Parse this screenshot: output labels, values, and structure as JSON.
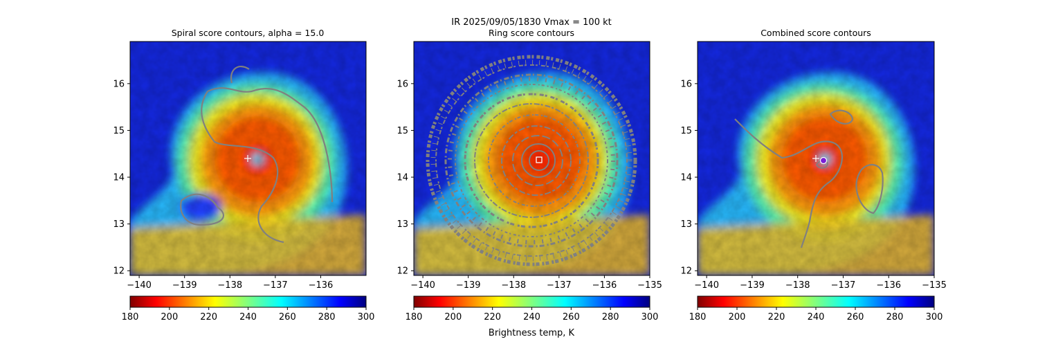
{
  "suptitle": "IR  2025/09/05/1830    Vmax = 100 kt",
  "colorbar_label": "Brightness temp, K",
  "colormap": "jet_r",
  "colors": {
    "contour": "#808080",
    "marker": "#ffffff",
    "center_dot": "#7b1fd6"
  },
  "chart_data": [
    {
      "type": "heatmap",
      "title": "Spiral score contours, alpha = 15.0",
      "xlim": [
        -140.2,
        -135.0
      ],
      "ylim": [
        11.9,
        16.9
      ],
      "xticks": [
        -140,
        -139,
        -138,
        -137,
        -136
      ],
      "xtick_labels": [
        "−140",
        "−139",
        "−138",
        "−137",
        "−136"
      ],
      "yticks": [
        12,
        13,
        14,
        15,
        16
      ],
      "ytick_labels": [
        "12",
        "13",
        "14",
        "15",
        "16"
      ],
      "colorbar": {
        "min": 180,
        "max": 300,
        "ticks": [
          "180",
          "200",
          "220",
          "240",
          "260",
          "280",
          "300"
        ],
        "label": ""
      },
      "center_marker": {
        "type": "plus",
        "lon": -137.6,
        "lat": 14.38
      },
      "field": {
        "eye_lon": -137.45,
        "eye_lat": 14.35
      }
    },
    {
      "type": "heatmap",
      "title": "Ring score contours",
      "xlim": [
        -140.2,
        -135.0
      ],
      "ylim": [
        11.9,
        16.9
      ],
      "xticks": [
        -140,
        -139,
        -138,
        -137,
        -136,
        -135
      ],
      "xtick_labels": [
        "−140",
        "−139",
        "−138",
        "−137",
        "−136",
        "−135"
      ],
      "yticks": [
        12,
        13,
        14,
        15,
        16
      ],
      "ytick_labels": [
        "12",
        "13",
        "14",
        "15",
        "16"
      ],
      "colorbar": {
        "min": 180,
        "max": 300,
        "ticks": [
          "180",
          "200",
          "220",
          "240",
          "260",
          "280",
          "300"
        ],
        "label": "Brightness temp, K"
      },
      "center_marker": {
        "type": "square",
        "lon": -137.45,
        "lat": 14.35
      },
      "field": {
        "eye_lon": -137.45,
        "eye_lat": 14.35
      }
    },
    {
      "type": "heatmap",
      "title": "Combined score contours",
      "xlim": [
        -140.2,
        -135.0
      ],
      "ylim": [
        11.9,
        16.9
      ],
      "xticks": [
        -140,
        -139,
        -138,
        -137,
        -136,
        -135
      ],
      "xtick_labels": [
        "−140",
        "−139",
        "−138",
        "−137",
        "−136",
        "−135"
      ],
      "yticks": [
        12,
        13,
        14,
        15,
        16
      ],
      "ytick_labels": [
        "12",
        "13",
        "14",
        "15",
        "16"
      ],
      "colorbar": {
        "min": 180,
        "max": 300,
        "ticks": [
          "180",
          "200",
          "220",
          "240",
          "260",
          "280",
          "300"
        ],
        "label": ""
      },
      "center_marker": {
        "type": "plus-and-dot",
        "lon": -137.5,
        "lat": 14.38
      },
      "field": {
        "eye_lon": -137.45,
        "eye_lat": 14.35
      }
    }
  ]
}
